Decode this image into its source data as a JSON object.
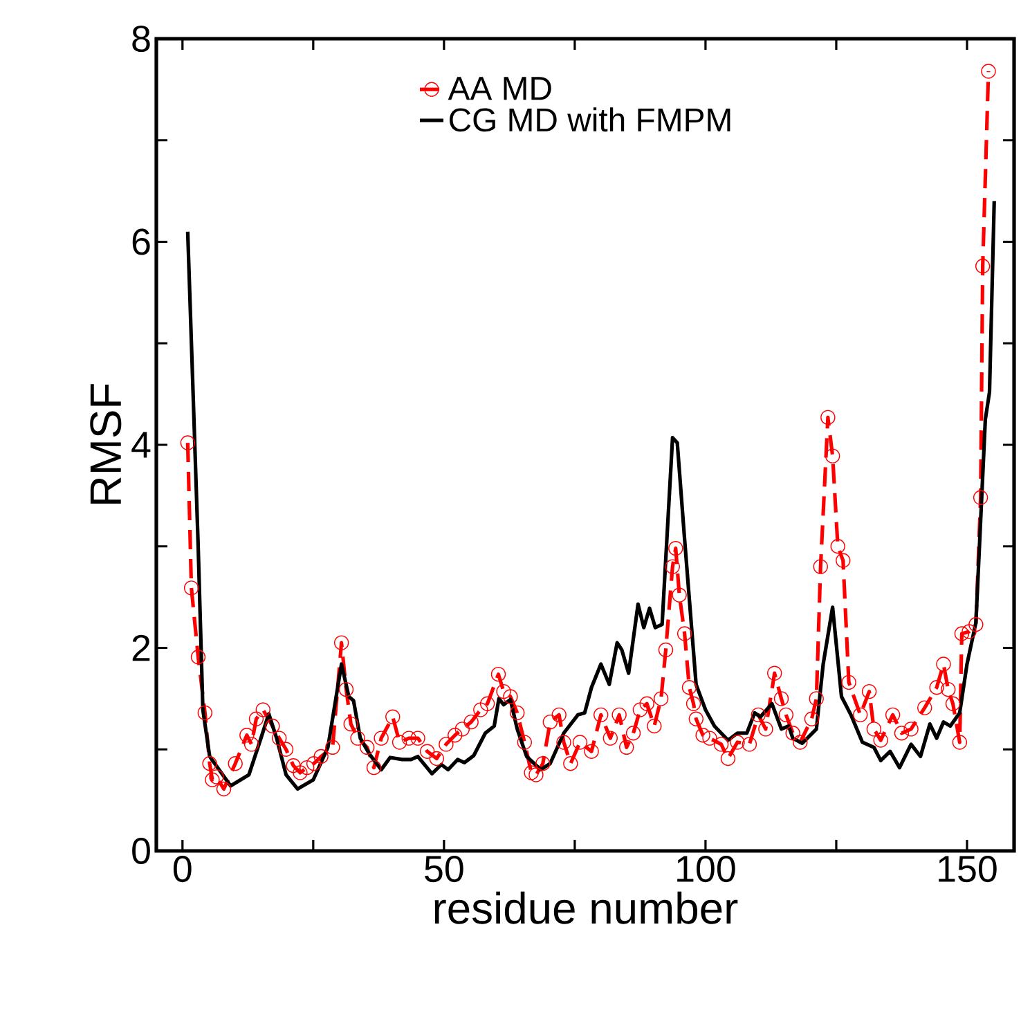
{
  "chart_data": {
    "type": "line",
    "xlabel": "residue number",
    "ylabel": "RMSF",
    "xlim": [
      -5,
      159
    ],
    "ylim": [
      0,
      8
    ],
    "xticks": [
      0,
      {
        "value": 25,
        "label": null
      },
      50,
      {
        "value": 75,
        "label": null
      },
      100,
      {
        "value": 125,
        "label": null
      },
      150
    ],
    "yticks": [
      0,
      {
        "value": 1,
        "label": null
      },
      2,
      {
        "value": 3,
        "label": null
      },
      4,
      {
        "value": 5,
        "label": null
      },
      6,
      {
        "value": 7,
        "label": null
      },
      8
    ],
    "legend": "top left",
    "grid": false,
    "series": [
      {
        "name": "AA MD",
        "color": "#ff0000",
        "marker": "circle",
        "line_style": "dashed",
        "x": [
          1,
          1.7,
          3,
          4.3,
          5.2,
          5.7,
          6.5,
          7.9,
          10.1,
          12.3,
          13.2,
          14.1,
          15.4,
          17.2,
          18.5,
          19.8,
          21.2,
          22.5,
          23.8,
          25.1,
          26.5,
          28.7,
          30.4,
          31.3,
          32.2,
          33.5,
          35.3,
          36.6,
          38,
          40.2,
          41.5,
          43.3,
          45,
          46.8,
          48.6,
          50.4,
          52.1,
          53.5,
          55.2,
          57,
          58.3,
          60.4,
          61.4,
          62.7,
          64,
          65.4,
          66.7,
          67.6,
          68.9,
          70.3,
          72,
          72.9,
          74.2,
          76,
          78.2,
          80,
          81.8,
          83.5,
          84.9,
          86.2,
          87.5,
          88.8,
          90.2,
          91.5,
          92.4,
          93.7,
          94.3,
          95,
          96,
          96.9,
          97.7,
          98.2,
          99.5,
          100.8,
          103,
          104.3,
          106.1,
          108.4,
          110.1,
          111.5,
          113.2,
          114.5,
          115.4,
          116.7,
          118.1,
          120.3,
          121.2,
          122,
          123.4,
          124.3,
          125.3,
          126.3,
          127.4,
          129.6,
          131.3,
          132.2,
          133.5,
          135.8,
          137.5,
          139.3,
          141.9,
          144.2,
          145.5,
          146.4,
          147.3,
          148.6,
          149,
          150.4,
          151.7,
          152.6,
          153,
          154.1
        ],
        "values": [
          4.02,
          2.59,
          1.91,
          1.36,
          0.86,
          0.7,
          0.73,
          0.61,
          0.86,
          1.14,
          1.05,
          1.3,
          1.39,
          1.23,
          1.11,
          1.0,
          0.84,
          0.77,
          0.82,
          0.86,
          0.93,
          1.02,
          2.05,
          1.59,
          1.25,
          1.11,
          1.02,
          0.82,
          1.11,
          1.32,
          1.07,
          1.11,
          1.11,
          0.98,
          0.91,
          1.05,
          1.14,
          1.2,
          1.27,
          1.39,
          1.45,
          1.74,
          1.57,
          1.52,
          1.36,
          1.07,
          0.77,
          0.75,
          0.86,
          1.27,
          1.34,
          1.07,
          0.86,
          1.07,
          0.98,
          1.34,
          1.11,
          1.34,
          1.02,
          1.16,
          1.39,
          1.45,
          1.23,
          1.5,
          1.98,
          2.8,
          2.98,
          2.52,
          2.14,
          1.61,
          1.45,
          1.3,
          1.14,
          1.11,
          1.05,
          0.91,
          1.07,
          1.05,
          1.34,
          1.2,
          1.75,
          1.5,
          1.34,
          1.16,
          1.07,
          1.3,
          1.5,
          2.8,
          4.27,
          3.89,
          3.0,
          2.86,
          1.66,
          1.34,
          1.57,
          1.2,
          1.09,
          1.34,
          1.16,
          1.2,
          1.41,
          1.61,
          1.84,
          1.59,
          1.45,
          1.07,
          2.14,
          2.16,
          2.23,
          3.48,
          5.76,
          7.68
        ]
      },
      {
        "name": "CG MD with FMPM",
        "color": "#000000",
        "line_style": "solid",
        "x": [
          1,
          3,
          3.9,
          5.2,
          9.2,
          12.7,
          15,
          16.5,
          18,
          19.8,
          22,
          25,
          27.8,
          30.4,
          31.8,
          32.7,
          34,
          35.8,
          38,
          39.7,
          42,
          43.7,
          45,
          47.7,
          49.5,
          50.8,
          52.6,
          53.9,
          55.7,
          57.9,
          59.6,
          60.5,
          61.4,
          62.7,
          64,
          65.8,
          68.5,
          70.3,
          72.9,
          75.6,
          76.9,
          78.2,
          80,
          81.6,
          83.1,
          84,
          85.3,
          87.1,
          88.2,
          89.3,
          90.4,
          91.7,
          93.7,
          94.6,
          96,
          98.2,
          100,
          101.7,
          104.3,
          106.1,
          107.9,
          109.4,
          110.5,
          112.7,
          114.5,
          115.9,
          116.7,
          118.5,
          121.2,
          122.5,
          124.3,
          126,
          127.8,
          130,
          132.2,
          133.5,
          135.3,
          137.1,
          139.3,
          141.1,
          142.9,
          144.2,
          145.5,
          146.8,
          148.6,
          150,
          151.7,
          153.5,
          154.3,
          155.2
        ],
        "values": [
          6.1,
          3.0,
          1.39,
          0.93,
          0.64,
          0.75,
          1.11,
          1.35,
          1.11,
          0.75,
          0.61,
          0.7,
          1.02,
          1.84,
          1.52,
          1.48,
          1.11,
          0.95,
          0.8,
          0.92,
          0.9,
          0.9,
          0.93,
          0.76,
          0.85,
          0.8,
          0.9,
          0.87,
          0.94,
          1.16,
          1.23,
          1.5,
          1.44,
          1.49,
          1.2,
          0.93,
          0.8,
          0.86,
          1.16,
          1.34,
          1.36,
          1.61,
          1.84,
          1.64,
          2.05,
          1.98,
          1.75,
          2.43,
          2.2,
          2.39,
          2.2,
          2.23,
          4.07,
          4.02,
          3.07,
          1.64,
          1.39,
          1.23,
          1.09,
          1.16,
          1.16,
          1.36,
          1.32,
          1.45,
          1.2,
          1.23,
          1.11,
          1.06,
          1.2,
          1.84,
          2.4,
          1.52,
          1.34,
          1.07,
          1.02,
          0.89,
          0.98,
          0.82,
          1.05,
          0.93,
          1.25,
          1.11,
          1.27,
          1.23,
          1.36,
          1.84,
          2.25,
          4.25,
          4.52,
          6.4
        ]
      }
    ]
  }
}
